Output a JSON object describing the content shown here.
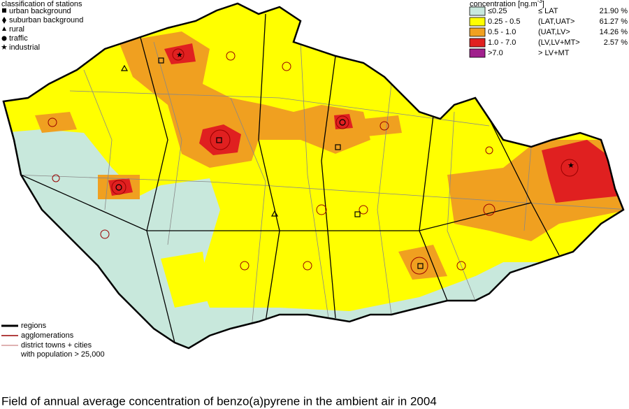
{
  "stations_legend": {
    "title": "classification of stations",
    "items": [
      "urban background",
      "suburban background",
      "rural",
      "traffic",
      "industrial"
    ]
  },
  "concentration_legend": {
    "title": "concentration [ng.m",
    "title_sup": "-3",
    "title_end": "]",
    "rows": [
      {
        "range": "≤0.25",
        "class": "≤ LAT",
        "share": "21.90 %",
        "color": "#c8e8dc"
      },
      {
        "range": "0.25 - 0.5",
        "class": "(LAT,UAT>",
        "share": "61.27 %",
        "color": "#ffff00"
      },
      {
        "range": "0.5 - 1.0",
        "class": "(UAT,LV>",
        "share": "14.26 %",
        "color": "#f0a020"
      },
      {
        "range": "1.0 - 7.0",
        "class": "(LV,LV+MT>",
        "share": "2.57 %",
        "color": "#e02020"
      },
      {
        "range": ">7.0",
        "class": "> LV+MT",
        "color": "#a0208c"
      }
    ]
  },
  "lines_legend": {
    "regions": "regions",
    "agglomerations": "agglomerations",
    "towns": [
      "district towns + cities",
      "with population > 25,000"
    ]
  },
  "caption": "Field of annual average concentration of benzo(a)pyrene in the ambient air in 2004"
}
